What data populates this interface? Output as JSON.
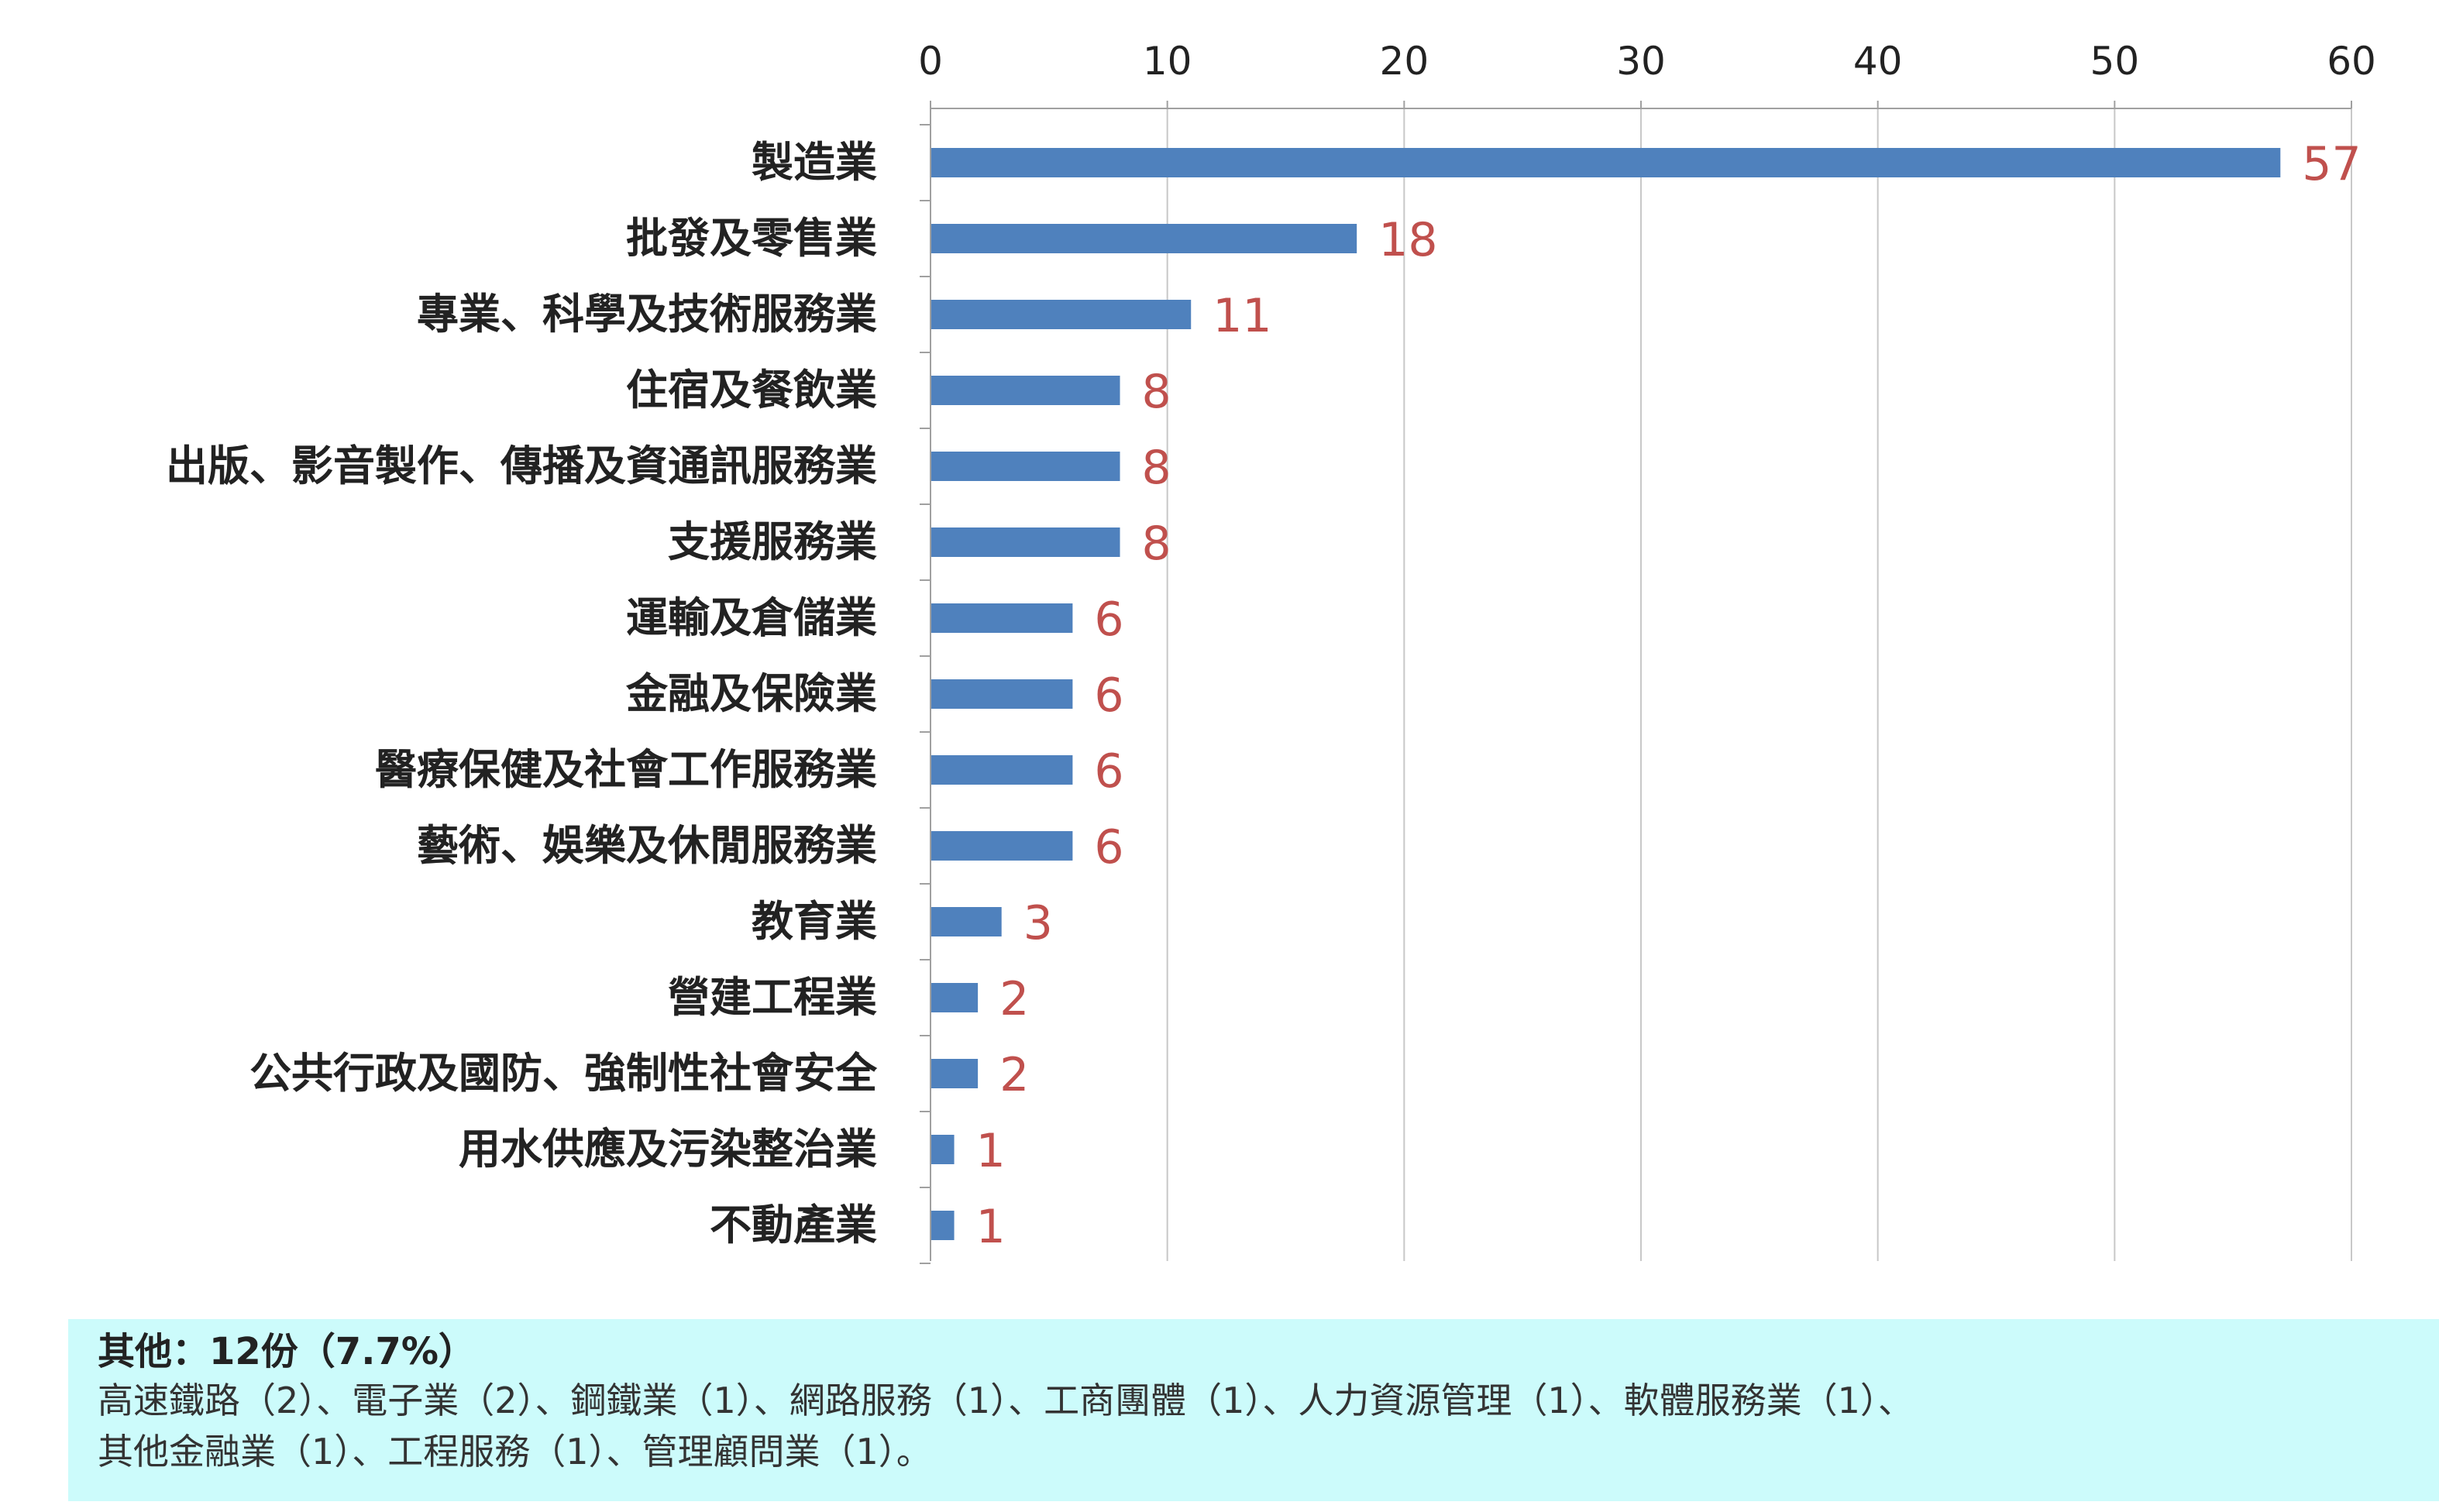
{
  "chart_data": {
    "type": "bar",
    "orientation": "horizontal",
    "categories": [
      "製造業",
      "批發及零售業",
      "專業、科學及技術服務業",
      "住宿及餐飲業",
      "出版、影音製作、傳播及資通訊服務業",
      "支援服務業",
      "運輸及倉儲業",
      "金融及保險業",
      "醫療保健及社會工作服務業",
      "藝術、娛樂及休閒服務業",
      "教育業",
      "營建工程業",
      "公共行政及國防、強制性社會安全",
      "用水供應及污染整治業",
      "不動產業"
    ],
    "values": [
      57,
      18,
      11,
      8,
      8,
      8,
      6,
      6,
      6,
      6,
      3,
      2,
      2,
      1,
      1
    ],
    "x_ticks": [
      0,
      10,
      20,
      30,
      40,
      50,
      60
    ],
    "xlim": [
      0,
      60
    ],
    "x_axis_position": "top",
    "grid": true,
    "data_labels": true,
    "colors": {
      "bar": "#4f81bd",
      "label": "#c0504d",
      "grid": "#c8c8c8",
      "axis": "#a0a0a0",
      "text": "#222222"
    }
  },
  "note": {
    "title": "其他：12份（7.7%）",
    "line1": "高速鐵路（2）、電子業（2）、鋼鐵業（1）、網路服務（1）、工商團體（1）、人力資源管理（1）、軟體服務業（1）、",
    "line2": "其他金融業（1）、工程服務（1）、管理顧問業（1）。"
  }
}
